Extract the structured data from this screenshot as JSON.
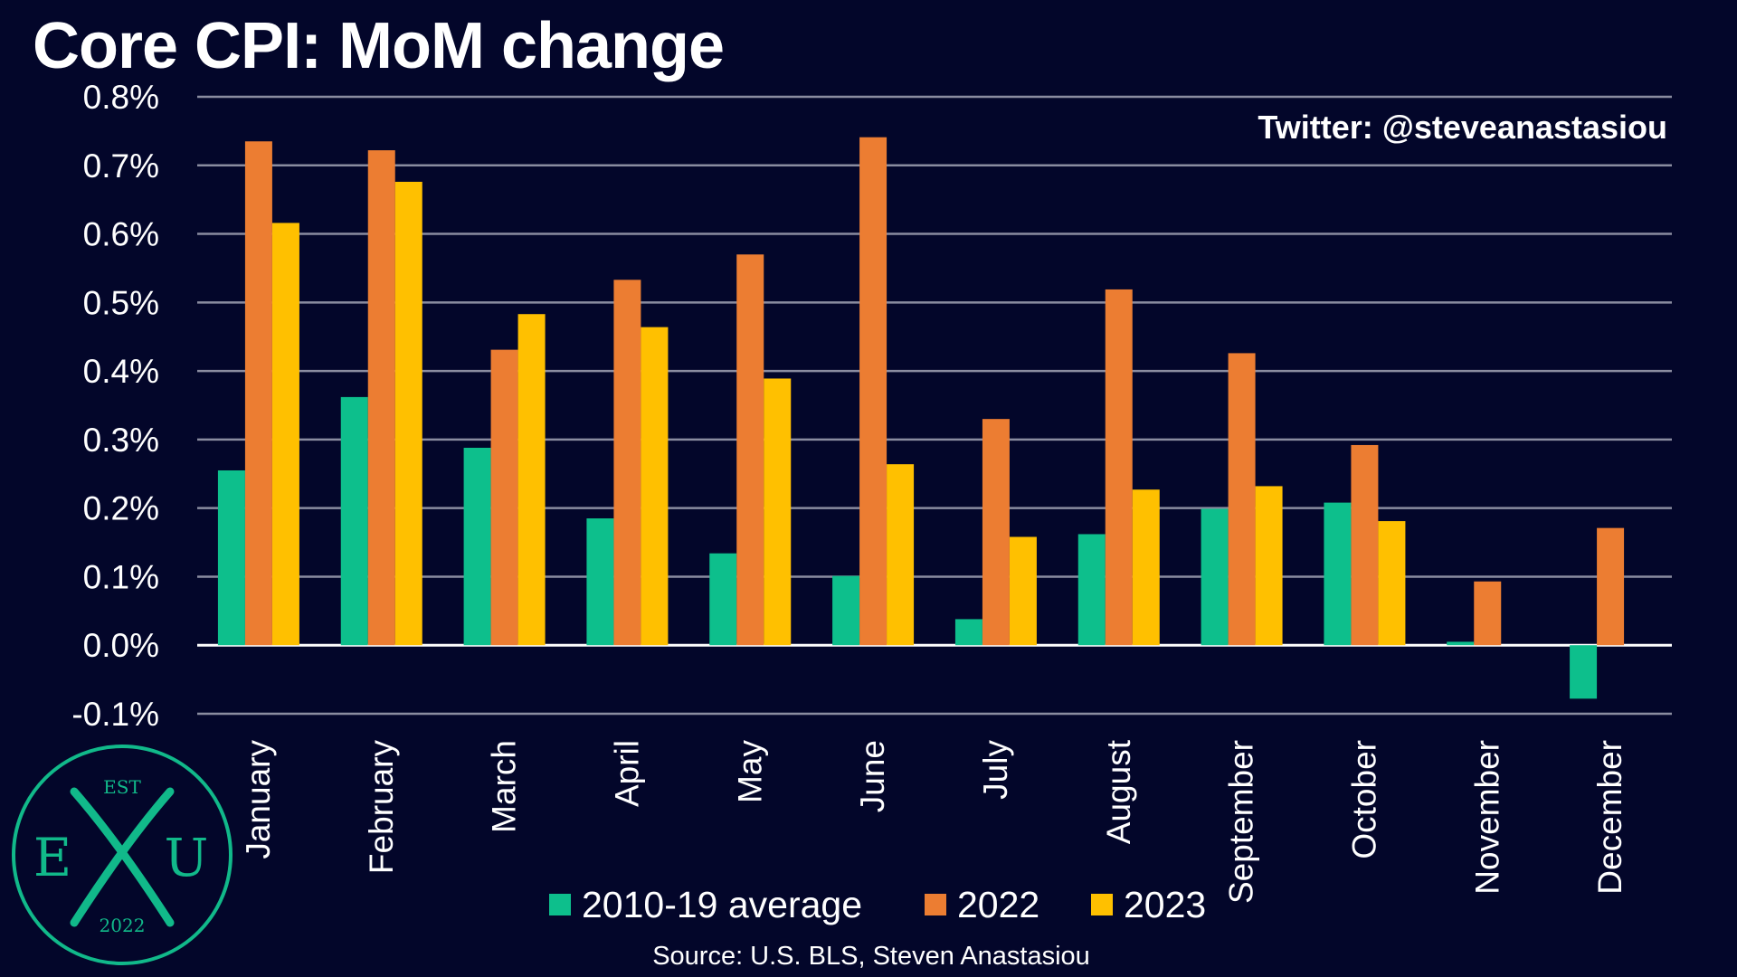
{
  "title": "Core CPI: MoM change",
  "watermark": "Twitter: @steveanastasiou",
  "source": "Source: U.S. BLS, Steven Anastasiou",
  "logo": {
    "top": "EST",
    "left": "E",
    "right": "U",
    "bottom": "2022"
  },
  "colors": {
    "background": "#03062a",
    "grid": "#8a8ca0",
    "zero_line": "#ffffff",
    "avg": "#0dbf8c",
    "y2022": "#ec7d32",
    "y2023": "#ffc000",
    "logo_teal": "#11b98a"
  },
  "chart_data": {
    "type": "bar",
    "categories": [
      "January",
      "February",
      "March",
      "April",
      "May",
      "June",
      "July",
      "August",
      "September",
      "October",
      "November",
      "December"
    ],
    "series": [
      {
        "name": "2010-19 average",
        "color": "#0dbf8c",
        "values": [
          0.255,
          0.362,
          0.288,
          0.185,
          0.134,
          0.101,
          0.038,
          0.162,
          0.199,
          0.208,
          0.005,
          -0.078
        ]
      },
      {
        "name": "2022",
        "color": "#ec7d32",
        "values": [
          0.735,
          0.722,
          0.431,
          0.533,
          0.57,
          0.741,
          0.33,
          0.519,
          0.426,
          0.292,
          0.093,
          0.171
        ]
      },
      {
        "name": "2023",
        "color": "#ffc000",
        "values": [
          0.616,
          0.676,
          0.483,
          0.464,
          0.389,
          0.264,
          0.158,
          0.227,
          0.232,
          0.181,
          null,
          null
        ]
      }
    ],
    "yticks": [
      "0.8%",
      "0.7%",
      "0.6%",
      "0.5%",
      "0.4%",
      "0.3%",
      "0.2%",
      "0.1%",
      "0.0%",
      "-0.1%"
    ],
    "ylim": [
      -0.1,
      0.8
    ],
    "xlabel": "",
    "ylabel": "",
    "grid": true,
    "legend_position": "bottom"
  }
}
